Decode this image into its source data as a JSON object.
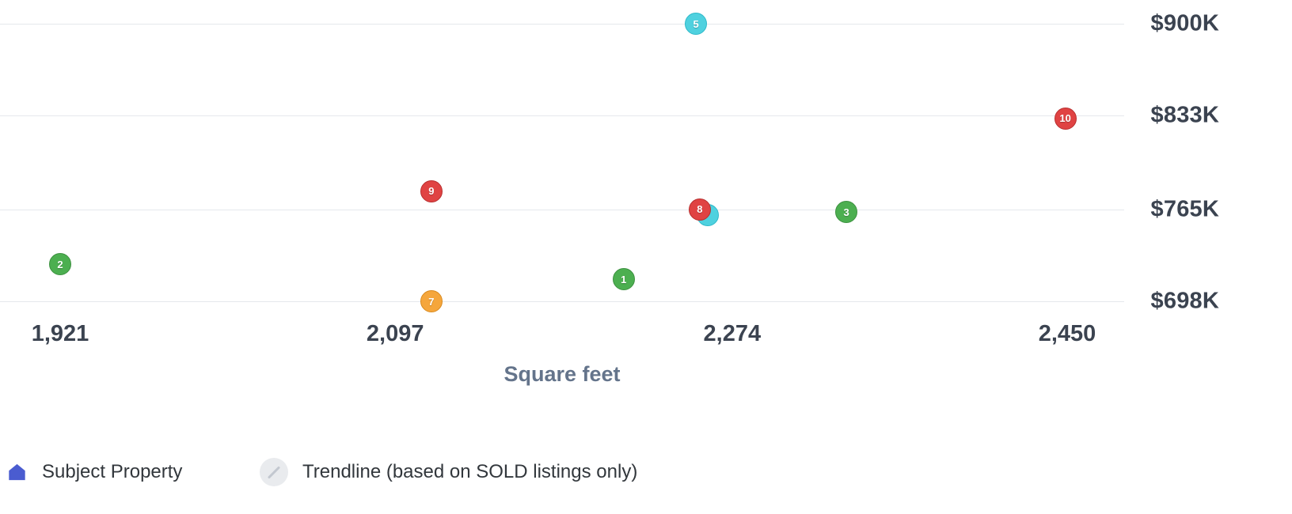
{
  "chart_data": {
    "type": "scatter",
    "title": "",
    "xlabel": "Square feet",
    "ylabel": "",
    "x_tick_labels": [
      "1,921",
      "2,097",
      "2,274",
      "2,450"
    ],
    "x_tick_values": [
      1921,
      2097,
      2274,
      2450
    ],
    "y_tick_labels": [
      "$900K",
      "$833K",
      "$765K",
      "$698K"
    ],
    "y_tick_values": [
      900,
      833,
      765,
      698
    ],
    "xlim": [
      1921,
      2450
    ],
    "ylim": [
      698,
      900
    ],
    "grid": "horizontal-only",
    "legend_position": "bottom-left",
    "points": [
      {
        "label": "2",
        "sqft": 1921,
        "price_k": 725,
        "fill": "#4caf50",
        "border": "#3d9140"
      },
      {
        "label": "7",
        "sqft": 2116,
        "price_k": 698,
        "fill": "#f5a63c",
        "border": "#d98a1f"
      },
      {
        "label": "9",
        "sqft": 2116,
        "price_k": 778,
        "fill": "#e04343",
        "border": "#b82f2f"
      },
      {
        "label": "1",
        "sqft": 2217,
        "price_k": 714,
        "fill": "#4caf50",
        "border": "#3d9140"
      },
      {
        "label": "",
        "sqft": 2261,
        "price_k": 761,
        "fill": "#4fd1df",
        "border": "#2fb9c9"
      },
      {
        "label": "8",
        "sqft": 2257,
        "price_k": 765,
        "fill": "#e04343",
        "border": "#b82f2f"
      },
      {
        "label": "3",
        "sqft": 2334,
        "price_k": 763,
        "fill": "#4caf50",
        "border": "#3d9140"
      },
      {
        "label": "5",
        "sqft": 2255,
        "price_k": 900,
        "fill": "#4fd1df",
        "border": "#2fb9c9"
      },
      {
        "label": "10",
        "sqft": 2449,
        "price_k": 831,
        "fill": "#e04343",
        "border": "#b82f2f"
      }
    ]
  },
  "legend": {
    "subject_property": "Subject Property",
    "trendline": "Trendline (based on SOLD listings only)"
  },
  "colors": {
    "gridline": "#e5e8ec",
    "axis_label": "#3b4350",
    "axis_title": "#64748b",
    "subject_icon": "#4a5cd0",
    "trendline_icon_bg": "#e9ebee",
    "trendline_icon_line": "#c3c8d0"
  }
}
